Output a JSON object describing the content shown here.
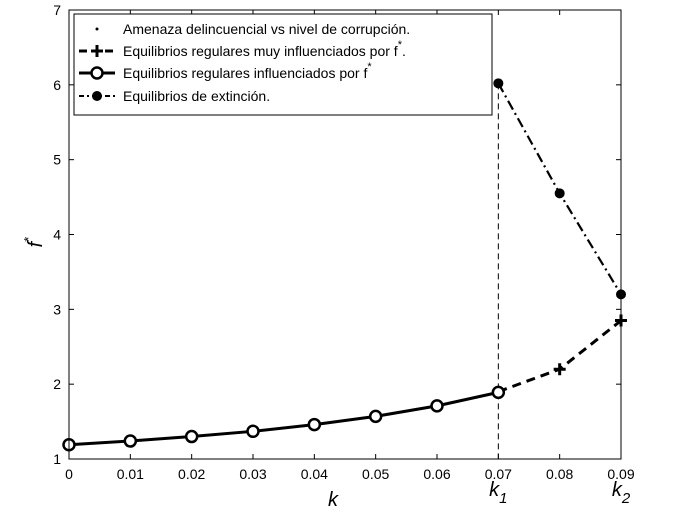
{
  "chart_data": {
    "type": "line",
    "xlabel": "k",
    "ylabel_base": "f",
    "ylabel_sup": "*",
    "xlim": [
      0,
      0.09
    ],
    "ylim": [
      1,
      7
    ],
    "x_ticks": [
      0,
      0.01,
      0.02,
      0.03,
      0.04,
      0.05,
      0.06,
      0.07,
      0.08,
      0.09
    ],
    "x_tick_labels": [
      "0",
      "0.01",
      "0.02",
      "0.03",
      "0.04",
      "0.05",
      "0.06",
      "0.07",
      "0.08",
      "0.09"
    ],
    "y_ticks": [
      1,
      2,
      3,
      4,
      5,
      6,
      7
    ],
    "y_tick_labels": [
      "1",
      "2",
      "3",
      "4",
      "5",
      "6",
      "7"
    ],
    "grid": false,
    "legend_position": "top-left",
    "annotations": [
      {
        "base": "k",
        "sub": "1",
        "x": 0.07
      },
      {
        "base": "k",
        "sub": "2",
        "x": 0.09
      }
    ],
    "series": [
      {
        "name": "Amenaza delincuencial vs nivel de corrupción.",
        "style": "dot",
        "x": [],
        "y": []
      },
      {
        "name": "Equilibrios regulares muy influenciados por f",
        "name_sup": "*",
        "name_after": ".",
        "style": "dashed-plus",
        "x": [
          0.07,
          0.08,
          0.09
        ],
        "y": [
          1.9,
          2.2,
          2.85
        ]
      },
      {
        "name": "Equilibrios regulares influenciados por f",
        "name_sup": "*",
        "name_after": "",
        "style": "solid-circle",
        "x": [
          0,
          0.01,
          0.02,
          0.03,
          0.04,
          0.05,
          0.06,
          0.07
        ],
        "y": [
          1.19,
          1.24,
          1.3,
          1.37,
          1.46,
          1.57,
          1.71,
          1.89
        ]
      },
      {
        "name": "Equilibrios de extinción.",
        "style": "dashdot-filled",
        "x": [
          0.07,
          0.08,
          0.09
        ],
        "y": [
          6.02,
          4.55,
          3.2
        ]
      }
    ],
    "colors": {
      "line": "#000000",
      "background": "#ffffff"
    }
  }
}
